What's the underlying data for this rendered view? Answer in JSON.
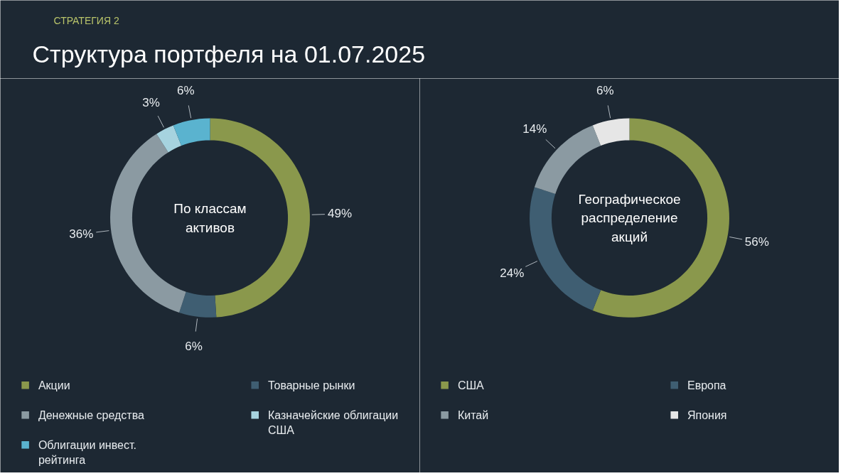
{
  "chart_data": [
    {
      "type": "donut",
      "title": "Структура портфеля на 01.07.2025",
      "subtitle": "СТРАТЕГИЯ 2",
      "annotations": [
        "По классам активов"
      ],
      "categories": [
        "Акции",
        "Товарные рынки",
        "Денежные средства",
        "Казначейские облигации США",
        "Облигации инвест. рейтинга"
      ],
      "values": [
        49,
        6,
        36,
        3,
        6
      ],
      "value_labels": [
        "49%",
        "6%",
        "36%",
        "3%",
        "6%"
      ],
      "colors": [
        "#8a984c",
        "#3f5e72",
        "#8b9aa2",
        "#a6d3df",
        "#5ab3cf"
      ],
      "legend": "bottom"
    },
    {
      "type": "donut",
      "annotations": [
        "Географическое распределение акций"
      ],
      "categories": [
        "США",
        "Европа",
        "Китай",
        "Япония"
      ],
      "values": [
        56,
        24,
        14,
        6
      ],
      "value_labels": [
        "56%",
        "24%",
        "14%",
        "6%"
      ],
      "colors": [
        "#8a984c",
        "#3f5e72",
        "#8b9aa2",
        "#e6e6e6"
      ],
      "legend": "bottom"
    }
  ]
}
